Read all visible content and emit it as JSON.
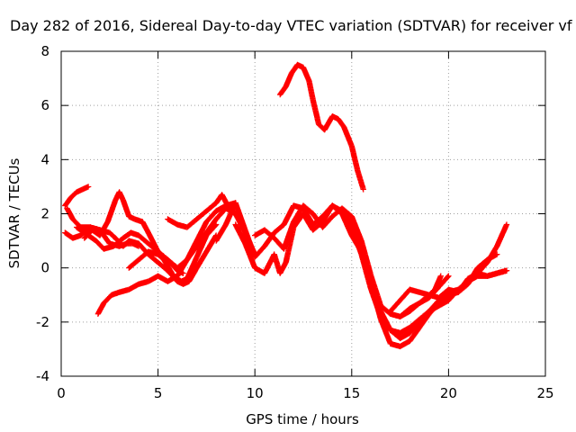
{
  "chart_data": {
    "type": "scatter",
    "title": "Day 282 of 2016, Sidereal Day-to-day VTEC variation (SDTVAR) for receiver vf",
    "xlabel": "GPS time / hours",
    "ylabel": "SDTVAR / TECUs",
    "xlim": [
      0,
      25
    ],
    "ylim": [
      -4,
      8
    ],
    "xticks": [
      0,
      5,
      10,
      15,
      20,
      25
    ],
    "yticks": [
      -4,
      -2,
      0,
      2,
      4,
      6,
      8
    ],
    "grid": true,
    "marker": "plus",
    "color": "#ff0000",
    "series": [
      {
        "x": [
          0.2,
          0.5,
          0.8,
          1.1,
          1.4
        ],
        "y": [
          2.3,
          2.6,
          2.8,
          2.9,
          3.0
        ]
      },
      {
        "x": [
          0.2,
          0.6,
          1.0,
          1.5,
          2.0,
          2.5,
          3.0,
          3.4,
          3.7,
          4.0
        ],
        "y": [
          1.3,
          1.1,
          1.2,
          1.5,
          1.4,
          0.9,
          0.8,
          0.9,
          0.9,
          0.8
        ]
      },
      {
        "x": [
          0.3,
          0.6,
          1.0,
          1.5,
          2.0,
          2.5,
          2.8,
          3.2,
          3.5,
          4.0,
          4.5,
          5.0,
          5.5,
          6.0,
          6.3,
          6.6,
          7.0,
          7.5,
          8.0
        ],
        "y": [
          2.2,
          1.8,
          1.5,
          1.5,
          1.4,
          1.3,
          1.1,
          0.8,
          1.0,
          0.9,
          0.5,
          0.2,
          -0.1,
          -0.5,
          -0.6,
          -0.5,
          0.0,
          0.6,
          1.2
        ]
      },
      {
        "x": [
          0.8,
          1.2,
          1.8,
          2.2,
          2.7,
          3.2,
          3.6,
          4.0,
          4.5,
          5.0,
          5.5,
          6.0,
          6.5,
          7.0,
          7.5,
          8.0,
          8.5,
          9.0,
          9.5,
          10.0
        ],
        "y": [
          1.5,
          1.3,
          1.0,
          0.7,
          0.8,
          1.1,
          1.3,
          1.2,
          0.9,
          0.6,
          0.3,
          0.0,
          0.3,
          0.8,
          1.3,
          1.8,
          2.2,
          2.0,
          1.3,
          0.5
        ]
      },
      {
        "x": [
          1.2,
          1.6,
          2.0,
          2.4,
          2.8,
          3.0,
          3.2,
          3.5,
          3.8,
          4.2,
          4.5,
          5.0,
          5.5,
          6.0,
          6.3
        ],
        "y": [
          1.1,
          1.4,
          1.2,
          1.7,
          2.5,
          2.8,
          2.5,
          1.9,
          1.8,
          1.7,
          1.3,
          0.6,
          0.3,
          -0.1,
          -0.2
        ]
      },
      {
        "x": [
          1.9,
          2.2,
          2.6,
          3.0,
          3.5,
          4.0,
          4.5,
          5.0,
          5.5,
          6.0,
          6.5,
          7.0,
          7.5,
          8.0,
          8.5,
          9.0
        ],
        "y": [
          -1.7,
          -1.3,
          -1.0,
          -0.9,
          -0.8,
          -0.6,
          -0.5,
          -0.3,
          -0.5,
          -0.3,
          0.3,
          1.0,
          1.7,
          2.1,
          2.3,
          2.4
        ]
      },
      {
        "x": [
          3.5,
          4.0,
          4.5,
          5.0,
          5.3,
          5.8,
          6.2,
          6.5,
          7.0,
          7.5,
          8.0
        ],
        "y": [
          0.0,
          0.3,
          0.6,
          0.5,
          0.3,
          -0.3,
          -0.5,
          -0.4,
          0.4,
          1.2,
          1.6
        ]
      },
      {
        "x": [
          5.5,
          6.0,
          6.5,
          7.0,
          7.5,
          8.0,
          8.3,
          8.6,
          9.0,
          9.4
        ],
        "y": [
          1.8,
          1.6,
          1.5,
          1.8,
          2.1,
          2.4,
          2.7,
          2.3,
          2.0,
          1.5
        ]
      },
      {
        "x": [
          8.0,
          8.5,
          9.0,
          9.5,
          10.0,
          10.5,
          11.0,
          11.5,
          12.0,
          12.5,
          13.0,
          13.5,
          14.0,
          14.5,
          15.0,
          15.5,
          16.0,
          16.5,
          17.0,
          17.5,
          18.0,
          18.5,
          19.0,
          19.5,
          20.0,
          20.5,
          21.0,
          21.5,
          22.0,
          22.5,
          23.0
        ],
        "y": [
          1.0,
          1.6,
          2.4,
          1.4,
          0.4,
          0.8,
          1.3,
          1.6,
          2.3,
          2.2,
          1.6,
          1.9,
          2.3,
          2.0,
          1.2,
          0.6,
          -0.6,
          -1.6,
          -2.3,
          -2.6,
          -2.4,
          -2.0,
          -1.6,
          -1.2,
          -0.9,
          -0.8,
          -0.5,
          -0.3,
          -0.3,
          -0.2,
          -0.1
        ]
      },
      {
        "x": [
          9.0,
          9.5,
          10.0,
          10.5,
          11.0,
          11.3,
          11.6,
          12.0,
          12.5,
          13.0,
          13.5,
          14.0,
          14.5,
          15.0,
          15.5,
          16.0,
          16.5,
          17.0,
          17.5,
          18.0,
          18.5,
          19.0,
          19.5,
          20.0,
          20.5,
          21.0,
          21.5,
          22.0,
          22.5,
          23.0
        ],
        "y": [
          1.6,
          0.9,
          0.0,
          -0.2,
          0.5,
          -0.2,
          0.2,
          1.5,
          2.0,
          1.4,
          1.7,
          2.3,
          2.1,
          1.6,
          0.6,
          -0.6,
          -1.9,
          -2.8,
          -2.9,
          -2.7,
          -2.2,
          -1.7,
          -1.3,
          -1.0,
          -0.9,
          -0.4,
          -0.2,
          -0.3,
          -0.2,
          -0.1
        ]
      },
      {
        "x": [
          10.0,
          10.5,
          11.0,
          11.5,
          12.0,
          12.5,
          13.0,
          13.5,
          14.0,
          14.5,
          15.0,
          15.5,
          16.0,
          16.5,
          17.0,
          17.5,
          18.0,
          18.5,
          19.0,
          19.5,
          20.0
        ],
        "y": [
          1.2,
          1.4,
          1.1,
          0.7,
          1.7,
          2.3,
          2.0,
          1.5,
          1.9,
          2.2,
          1.9,
          1.0,
          -0.3,
          -1.4,
          -1.7,
          -1.8,
          -1.6,
          -1.3,
          -1.1,
          -0.7,
          -0.3
        ]
      },
      {
        "x": [
          14.5,
          15.0,
          15.5,
          16.0,
          16.5,
          17.0,
          17.5,
          18.0,
          18.5,
          19.0,
          19.5,
          20.0,
          20.5,
          21.0,
          21.5,
          22.0,
          22.5,
          23.0
        ],
        "y": [
          2.0,
          1.5,
          0.5,
          -0.8,
          -1.8,
          -2.3,
          -2.4,
          -2.2,
          -1.9,
          -1.6,
          -1.4,
          -1.2,
          -0.8,
          -0.5,
          -0.2,
          0.2,
          0.8,
          1.6
        ]
      },
      {
        "x": [
          17.5,
          18.0,
          18.5,
          19.0,
          19.5,
          20.0,
          20.5,
          21.0,
          21.5,
          22.0,
          22.5
        ],
        "y": [
          -1.8,
          -1.5,
          -1.3,
          -1.0,
          -1.1,
          -0.8,
          -0.9,
          -0.6,
          0.0,
          0.3,
          0.5
        ]
      },
      {
        "x": [
          17.0,
          17.5,
          18.0,
          18.5,
          19.0,
          19.3,
          19.6
        ],
        "y": [
          -1.6,
          -1.2,
          -0.8,
          -0.9,
          -1.0,
          -0.8,
          -0.3
        ]
      },
      {
        "x": [
          11.3,
          11.6,
          11.9,
          12.2,
          12.5,
          12.8,
          13.0,
          13.3,
          13.6,
          14.0,
          14.3,
          14.6,
          15.0,
          15.3,
          15.6
        ],
        "y": [
          6.4,
          6.7,
          7.2,
          7.5,
          7.4,
          6.9,
          6.2,
          5.3,
          5.1,
          5.6,
          5.5,
          5.2,
          4.5,
          3.6,
          2.9
        ]
      }
    ]
  }
}
